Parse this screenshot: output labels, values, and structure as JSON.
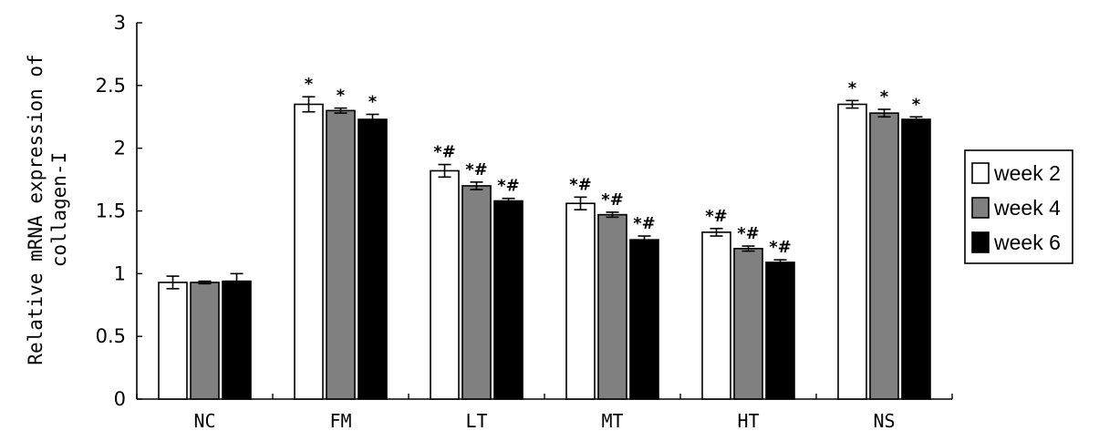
{
  "chart_data": {
    "type": "bar",
    "ylabel": "Relative mRNA expression of collagen-I",
    "ylabel_lines": [
      "Relative mRNA expression of",
      "collagen-I"
    ],
    "ylim": [
      0,
      3
    ],
    "yticks": [
      "0",
      "0.5",
      "1",
      "1.5",
      "2",
      "2.5",
      "3"
    ],
    "ytick_values": [
      0,
      0.5,
      1,
      1.5,
      2,
      2.5,
      3
    ],
    "categories": [
      "NC",
      "FM",
      "LT",
      "MT",
      "HT",
      "NS"
    ],
    "series": [
      {
        "name": "week 2",
        "color": "#ffffff",
        "values": [
          0.93,
          2.35,
          1.82,
          1.56,
          1.33,
          2.35
        ],
        "errors": [
          0.05,
          0.06,
          0.05,
          0.05,
          0.03,
          0.03
        ],
        "labels": [
          "",
          "*",
          "*#",
          "*#",
          "*#",
          "*"
        ]
      },
      {
        "name": "week 4",
        "color": "#808080",
        "values": [
          0.93,
          2.3,
          1.7,
          1.47,
          1.2,
          2.28
        ],
        "errors": [
          0.01,
          0.02,
          0.03,
          0.02,
          0.02,
          0.03
        ],
        "labels": [
          "",
          "*",
          "*#",
          "*#",
          "*#",
          "*"
        ]
      },
      {
        "name": "week 6",
        "color": "#000000",
        "values": [
          0.94,
          2.23,
          1.58,
          1.27,
          1.09,
          2.23
        ],
        "errors": [
          0.06,
          0.04,
          0.02,
          0.03,
          0.02,
          0.02
        ],
        "labels": [
          "",
          "*",
          "*#",
          "*#",
          "*#",
          "*"
        ]
      }
    ],
    "legend_position": "right",
    "grid": false
  }
}
